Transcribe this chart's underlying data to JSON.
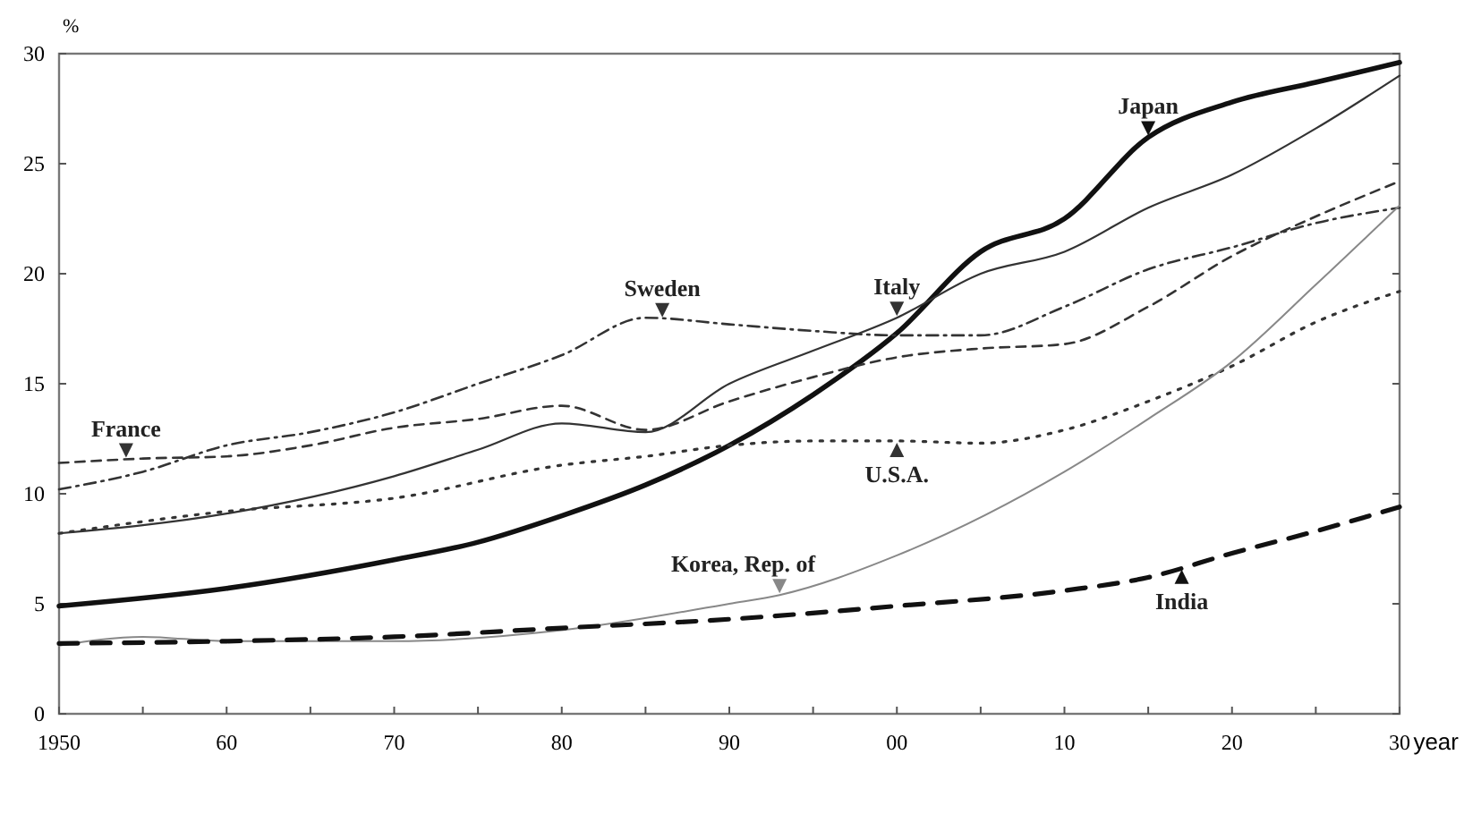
{
  "chart_data": {
    "type": "line",
    "xlabel": "year",
    "ylabel": "%",
    "xlim": [
      1950,
      2030
    ],
    "ylim": [
      0,
      30
    ],
    "xticks": [
      1950,
      {
        "value": 1955,
        "label": null
      },
      {
        "value": 1960,
        "label": "60"
      },
      {
        "value": 1965,
        "label": null
      },
      {
        "value": 1970,
        "label": "70"
      },
      {
        "value": 1975,
        "label": null
      },
      {
        "value": 1980,
        "label": "80"
      },
      {
        "value": 1985,
        "label": null
      },
      {
        "value": 1990,
        "label": "90"
      },
      {
        "value": 1995,
        "label": null
      },
      {
        "value": 2000,
        "label": "00"
      },
      {
        "value": 2005,
        "label": null
      },
      {
        "value": 2010,
        "label": "10"
      },
      {
        "value": 2015,
        "label": null
      },
      {
        "value": 2020,
        "label": "20"
      },
      {
        "value": 2025,
        "label": null
      },
      {
        "value": 2030,
        "label": "30"
      }
    ],
    "yticks": [
      0,
      5,
      10,
      15,
      20,
      25,
      30
    ],
    "grid": false,
    "legend": "right",
    "series": [
      {
        "name": "Japan",
        "color": "#111111",
        "line_style": "solid",
        "x": [
          1950,
          1960,
          1970,
          1975,
          1980,
          1985,
          1990,
          1995,
          2000,
          2005,
          2010,
          2015,
          2020,
          2025,
          2030
        ],
        "values": [
          4.9,
          5.7,
          7.0,
          7.8,
          9.0,
          10.4,
          12.2,
          14.5,
          17.3,
          21.0,
          22.5,
          26.2,
          27.8,
          28.7,
          29.6
        ]
      },
      {
        "name": "Italy",
        "color": "#333333",
        "line_style": "solid",
        "x": [
          1950,
          1960,
          1970,
          1975,
          1980,
          1985,
          1990,
          1995,
          2000,
          2005,
          2010,
          2015,
          2020,
          2025,
          2030
        ],
        "values": [
          8.2,
          9.1,
          10.8,
          12.0,
          13.2,
          12.8,
          15.0,
          16.5,
          18.0,
          20.0,
          21.0,
          23.0,
          24.5,
          26.6,
          29.0
        ]
      },
      {
        "name": "Sweden",
        "color": "#333333",
        "line_style": "dashdot",
        "x": [
          1950,
          1955,
          1960,
          1965,
          1970,
          1975,
          1980,
          1985,
          1990,
          1995,
          2000,
          2005,
          2010,
          2015,
          2020,
          2025,
          2030
        ],
        "values": [
          10.2,
          11.0,
          12.2,
          12.8,
          13.7,
          15.0,
          16.3,
          18.0,
          17.7,
          17.4,
          17.2,
          17.2,
          18.5,
          20.2,
          21.2,
          22.3,
          23.0
        ]
      },
      {
        "name": "France",
        "color": "#333333",
        "line_style": "dashed",
        "x": [
          1950,
          1955,
          1960,
          1965,
          1970,
          1975,
          1980,
          1985,
          1990,
          1995,
          2000,
          2005,
          2010,
          2015,
          2020,
          2025,
          2030
        ],
        "values": [
          11.4,
          11.6,
          11.7,
          12.2,
          13.0,
          13.4,
          14.0,
          12.9,
          14.2,
          15.3,
          16.2,
          16.6,
          16.8,
          18.5,
          20.8,
          22.6,
          24.2
        ]
      },
      {
        "name": "U.S.A.",
        "color": "#333333",
        "line_style": "dotted",
        "x": [
          1950,
          1960,
          1970,
          1980,
          1985,
          1990,
          1995,
          2000,
          2005,
          2010,
          2015,
          2020,
          2025,
          2030
        ],
        "values": [
          8.2,
          9.2,
          9.8,
          11.3,
          11.7,
          12.2,
          12.4,
          12.4,
          12.3,
          12.9,
          14.2,
          15.8,
          17.8,
          19.2
        ]
      },
      {
        "name": "Korea, Rep. of",
        "color": "#888888",
        "line_style": "solid",
        "x": [
          1950,
          1955,
          1960,
          1970,
          1980,
          1990,
          1993,
          2000,
          2010,
          2015,
          2020,
          2025,
          2030
        ],
        "values": [
          3.1,
          3.5,
          3.3,
          3.3,
          3.8,
          5.0,
          5.4,
          7.2,
          11.0,
          13.4,
          16.0,
          19.5,
          23.1
        ]
      },
      {
        "name": "India",
        "color": "#111111",
        "line_style": "dashed",
        "x": [
          1950,
          1960,
          1970,
          1980,
          1990,
          2000,
          2010,
          2015,
          2020,
          2025,
          2030
        ],
        "values": [
          3.2,
          3.3,
          3.5,
          3.9,
          4.3,
          4.9,
          5.6,
          6.2,
          7.3,
          8.3,
          9.4
        ]
      }
    ]
  }
}
